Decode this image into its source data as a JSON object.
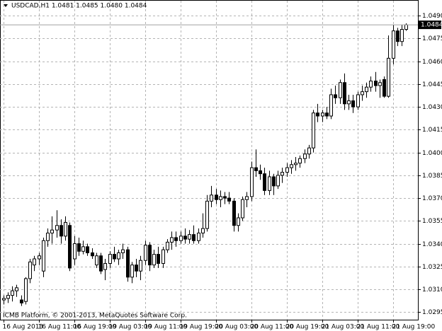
{
  "chart_data": {
    "type": "candlestick",
    "title": "USDCAD,H1  1.0481 1.0485 1.0480 1.0484",
    "annotation": "ICMB Platform, © 2001-2013, MetaQuotes Software Corp.",
    "categories": [
      "16 Aug 2013",
      null,
      null,
      null,
      null,
      null,
      null,
      null,
      "16 Aug 11:00",
      null,
      null,
      null,
      null,
      null,
      null,
      null,
      "16 Aug 19:00",
      null,
      null,
      null,
      null,
      null,
      null,
      null,
      "19 Aug 03:00",
      null,
      null,
      null,
      null,
      null,
      null,
      null,
      "19 Aug 11:00",
      null,
      null,
      null,
      null,
      null,
      null,
      null,
      "19 Aug 19:00",
      null,
      null,
      null,
      null,
      null,
      null,
      null,
      "20 Aug 03:00",
      null,
      null,
      null,
      null,
      null,
      null,
      null,
      "20 Aug 11:00",
      null,
      null,
      null,
      null,
      null,
      null,
      null,
      "20 Aug 19:00",
      null,
      null,
      null,
      null,
      null,
      null,
      null,
      "21 Aug 03:00",
      null,
      null,
      null,
      null,
      null,
      null,
      null,
      "21 Aug 11:00",
      null,
      null,
      null,
      null,
      null,
      null,
      null,
      "21 Aug 19:00",
      null,
      null,
      null
    ],
    "open": [
      1.0303,
      1.0304,
      1.0306,
      1.0309,
      1.0303,
      1.0302,
      1.0317,
      1.0326,
      1.033,
      1.0322,
      1.0342,
      1.0347,
      1.0349,
      1.0352,
      1.0345,
      1.0352,
      1.033,
      1.034,
      1.0335,
      1.0338,
      1.0334,
      1.0326,
      1.0332,
      1.0323,
      1.0327,
      1.0333,
      1.033,
      1.0334,
      1.0336,
      1.0318,
      1.0326,
      1.0322,
      1.0329,
      1.0339,
      1.0326,
      1.0333,
      1.0327,
      1.0336,
      1.0341,
      1.0344,
      1.0342,
      1.0345,
      1.0343,
      1.0346,
      1.0342,
      1.0347,
      1.035,
      1.0368,
      1.0372,
      1.0369,
      1.0371,
      1.037,
      1.0368,
      1.0352,
      1.0357,
      1.0369,
      1.0371,
      1.039,
      1.0388,
      1.0386,
      1.0375,
      1.0384,
      1.0378,
      1.0385,
      1.0387,
      1.039,
      1.0392,
      1.0393,
      1.0396,
      1.0399,
      1.0403,
      1.0426,
      1.0424,
      1.0426,
      1.0424,
      1.0438,
      1.0436,
      1.0446,
      1.0432,
      1.0434,
      1.043,
      1.0438,
      1.044,
      1.0443,
      1.0447,
      1.0444,
      1.0448,
      1.0437,
      1.0462,
      1.048,
      1.0473,
      1.0481
    ],
    "high": [
      1.0306,
      1.0308,
      1.0312,
      1.0313,
      1.0306,
      1.0318,
      1.033,
      1.0332,
      1.0334,
      1.0344,
      1.035,
      1.0358,
      1.0362,
      1.0356,
      1.0358,
      1.0354,
      1.0345,
      1.0344,
      1.0342,
      1.034,
      1.0337,
      1.0334,
      1.0334,
      1.033,
      1.0335,
      1.0338,
      1.0336,
      1.034,
      1.0338,
      1.0328,
      1.033,
      1.0332,
      1.0342,
      1.0341,
      1.0336,
      1.0338,
      1.0338,
      1.0343,
      1.0348,
      1.0348,
      1.0348,
      1.035,
      1.0349,
      1.0352,
      1.035,
      1.036,
      1.0372,
      1.0378,
      1.0376,
      1.0375,
      1.0374,
      1.0374,
      1.037,
      1.036,
      1.0371,
      1.0374,
      1.0394,
      1.0402,
      1.0392,
      1.039,
      1.0388,
      1.0386,
      1.0388,
      1.039,
      1.0393,
      1.0395,
      1.0397,
      1.0398,
      1.0402,
      1.0405,
      1.0428,
      1.0432,
      1.0428,
      1.043,
      1.0442,
      1.0444,
      1.0448,
      1.0452,
      1.0438,
      1.0438,
      1.044,
      1.0444,
      1.0446,
      1.045,
      1.0453,
      1.0448,
      1.045,
      1.0477,
      1.0484,
      1.0482,
      1.0484,
      1.0485
    ],
    "low": [
      1.03,
      1.0301,
      1.0302,
      1.0305,
      1.0299,
      1.03,
      1.0314,
      1.0322,
      1.0326,
      1.0318,
      1.0338,
      1.034,
      1.0344,
      1.034,
      1.0342,
      1.0322,
      1.0326,
      1.0332,
      1.0333,
      1.0332,
      1.033,
      1.0324,
      1.032,
      1.0316,
      1.0324,
      1.0328,
      1.0326,
      1.033,
      1.0315,
      1.0314,
      1.0318,
      1.0316,
      1.0326,
      1.0322,
      1.0324,
      1.0324,
      1.0324,
      1.0334,
      1.0336,
      1.0338,
      1.034,
      1.034,
      1.034,
      1.034,
      1.034,
      1.0344,
      1.0348,
      1.0364,
      1.0366,
      1.0364,
      1.0366,
      1.0366,
      1.0348,
      1.0348,
      1.0355,
      1.0364,
      1.0368,
      1.0384,
      1.0382,
      1.0372,
      1.0372,
      1.0372,
      1.0376,
      1.038,
      1.0384,
      1.0386,
      1.0388,
      1.039,
      1.0393,
      1.0396,
      1.04,
      1.042,
      1.042,
      1.0422,
      1.0422,
      1.0432,
      1.0432,
      1.0428,
      1.0428,
      1.0426,
      1.0428,
      1.0434,
      1.0436,
      1.044,
      1.044,
      1.0436,
      1.0436,
      1.0436,
      1.0458,
      1.047,
      1.047,
      1.048
    ],
    "close": [
      1.0304,
      1.0306,
      1.0309,
      1.0311,
      1.0301,
      1.0317,
      1.0328,
      1.033,
      1.0332,
      1.0342,
      1.0347,
      1.0349,
      1.0352,
      1.0345,
      1.0354,
      1.0324,
      1.034,
      1.0335,
      1.0338,
      1.0334,
      1.0332,
      1.0332,
      1.0322,
      1.0327,
      1.0333,
      1.033,
      1.0334,
      1.0336,
      1.0318,
      1.0326,
      1.0322,
      1.0329,
      1.0339,
      1.0326,
      1.0333,
      1.0327,
      1.0336,
      1.0341,
      1.0344,
      1.0342,
      1.0345,
      1.0343,
      1.0346,
      1.0342,
      1.0347,
      1.035,
      1.0368,
      1.0372,
      1.0369,
      1.0371,
      1.037,
      1.0368,
      1.0352,
      1.0357,
      1.0369,
      1.0371,
      1.039,
      1.0388,
      1.0386,
      1.0375,
      1.0384,
      1.0378,
      1.0385,
      1.0387,
      1.039,
      1.0392,
      1.0393,
      1.0396,
      1.0399,
      1.0403,
      1.0426,
      1.0424,
      1.0426,
      1.0424,
      1.0438,
      1.0436,
      1.0446,
      1.0432,
      1.0434,
      1.043,
      1.0438,
      1.044,
      1.0443,
      1.0447,
      1.0444,
      1.0446,
      1.0437,
      1.0462,
      1.048,
      1.0473,
      1.0481,
      1.0484
    ],
    "up_color": "#ffffff",
    "down_color": "#000000",
    "outline_color": "#000000",
    "ylim": [
      1.029,
      1.0498
    ],
    "yticks": [
      {
        "value": 1.0295,
        "label": "1.0295"
      },
      {
        "value": 1.031,
        "label": "1.0310"
      },
      {
        "value": 1.0325,
        "label": "1.0325"
      },
      {
        "value": 1.034,
        "label": "1.0340"
      },
      {
        "value": 1.0355,
        "label": "1.0355"
      },
      {
        "value": 1.037,
        "label": "1.0370"
      },
      {
        "value": 1.0385,
        "label": "1.0385"
      },
      {
        "value": 1.04,
        "label": "1.0400"
      },
      {
        "value": 1.0415,
        "label": "1.0415"
      },
      {
        "value": 1.043,
        "label": "1.0430"
      },
      {
        "value": 1.0445,
        "label": "1.0445"
      },
      {
        "value": 1.046,
        "label": "1.0460"
      },
      {
        "value": 1.0475,
        "label": "1.0475"
      },
      {
        "value": 1.049,
        "label": "1.0490"
      }
    ],
    "last_price": {
      "value": 1.0484,
      "label": "1.0484"
    },
    "grid": true
  }
}
